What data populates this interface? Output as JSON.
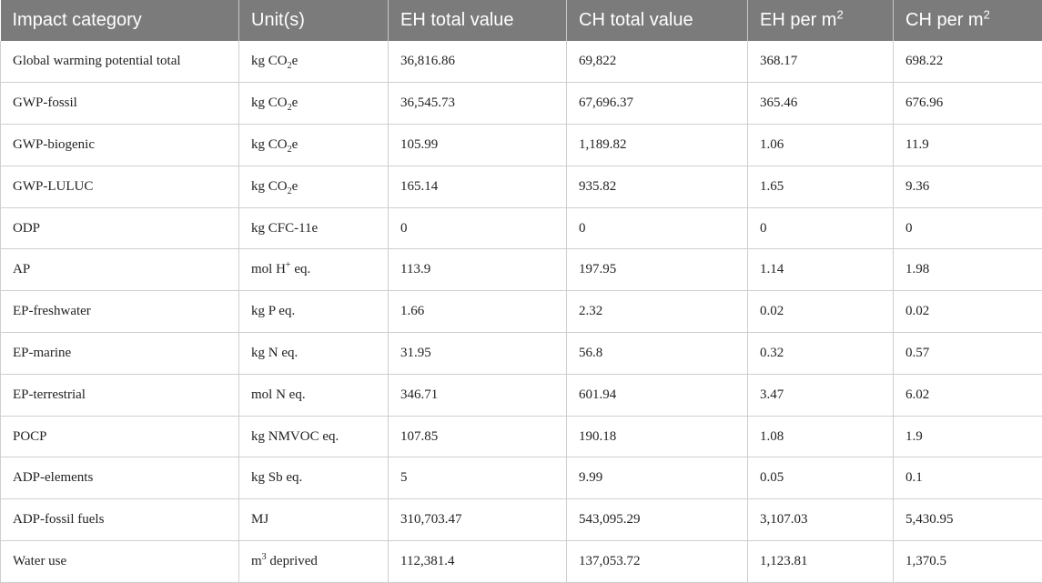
{
  "table": {
    "headers": [
      {
        "text": "Impact category",
        "sup": ""
      },
      {
        "text": "Unit(s)",
        "sup": ""
      },
      {
        "text": "EH total value",
        "sup": ""
      },
      {
        "text": "CH total value",
        "sup": ""
      },
      {
        "text": "EH per m",
        "sup": "2"
      },
      {
        "text": "CH per m",
        "sup": "2"
      }
    ],
    "rows": [
      {
        "category": "Global warming potential total",
        "unit": {
          "pre": "kg CO",
          "sub": "2",
          "sup": "",
          "post": "e"
        },
        "eh_total": "36,816.86",
        "ch_total": "69,822",
        "eh_per_m2": "368.17",
        "ch_per_m2": "698.22"
      },
      {
        "category": "GWP-fossil",
        "unit": {
          "pre": "kg CO",
          "sub": "2",
          "sup": "",
          "post": "e"
        },
        "eh_total": "36,545.73",
        "ch_total": "67,696.37",
        "eh_per_m2": "365.46",
        "ch_per_m2": "676.96"
      },
      {
        "category": "GWP-biogenic",
        "unit": {
          "pre": "kg CO",
          "sub": "2",
          "sup": "",
          "post": "e"
        },
        "eh_total": "105.99",
        "ch_total": "1,189.82",
        "eh_per_m2": "1.06",
        "ch_per_m2": "11.9"
      },
      {
        "category": "GWP-LULUC",
        "unit": {
          "pre": "kg CO",
          "sub": "2",
          "sup": "",
          "post": "e"
        },
        "eh_total": "165.14",
        "ch_total": "935.82",
        "eh_per_m2": "1.65",
        "ch_per_m2": "9.36"
      },
      {
        "category": "ODP",
        "unit": {
          "pre": "kg CFC-11e",
          "sub": "",
          "sup": "",
          "post": ""
        },
        "eh_total": "0",
        "ch_total": "0",
        "eh_per_m2": "0",
        "ch_per_m2": "0"
      },
      {
        "category": "AP",
        "unit": {
          "pre": "mol H",
          "sub": "",
          "sup": "+",
          "post": " eq."
        },
        "eh_total": "113.9",
        "ch_total": "197.95",
        "eh_per_m2": "1.14",
        "ch_per_m2": "1.98"
      },
      {
        "category": "EP-freshwater",
        "unit": {
          "pre": "kg P eq.",
          "sub": "",
          "sup": "",
          "post": ""
        },
        "eh_total": "1.66",
        "ch_total": "2.32",
        "eh_per_m2": "0.02",
        "ch_per_m2": "0.02"
      },
      {
        "category": "EP-marine",
        "unit": {
          "pre": "kg N eq.",
          "sub": "",
          "sup": "",
          "post": ""
        },
        "eh_total": "31.95",
        "ch_total": "56.8",
        "eh_per_m2": "0.32",
        "ch_per_m2": "0.57"
      },
      {
        "category": "EP-terrestrial",
        "unit": {
          "pre": "mol N eq.",
          "sub": "",
          "sup": "",
          "post": ""
        },
        "eh_total": "346.71",
        "ch_total": "601.94",
        "eh_per_m2": "3.47",
        "ch_per_m2": "6.02"
      },
      {
        "category": "POCP",
        "unit": {
          "pre": "kg NMVOC eq.",
          "sub": "",
          "sup": "",
          "post": ""
        },
        "eh_total": "107.85",
        "ch_total": "190.18",
        "eh_per_m2": "1.08",
        "ch_per_m2": "1.9"
      },
      {
        "category": "ADP-elements",
        "unit": {
          "pre": "kg Sb eq.",
          "sub": "",
          "sup": "",
          "post": ""
        },
        "eh_total": "5",
        "ch_total": "9.99",
        "eh_per_m2": "0.05",
        "ch_per_m2": "0.1"
      },
      {
        "category": "ADP-fossil fuels",
        "unit": {
          "pre": "MJ",
          "sub": "",
          "sup": "",
          "post": ""
        },
        "eh_total": "310,703.47",
        "ch_total": "543,095.29",
        "eh_per_m2": "3,107.03",
        "ch_per_m2": "5,430.95"
      },
      {
        "category": "Water use",
        "unit": {
          "pre": "m",
          "sub": "",
          "sup": "3",
          "post": " deprived"
        },
        "eh_total": "112,381.4",
        "ch_total": "137,053.72",
        "eh_per_m2": "1,123.81",
        "ch_per_m2": "1,370.5"
      }
    ]
  }
}
